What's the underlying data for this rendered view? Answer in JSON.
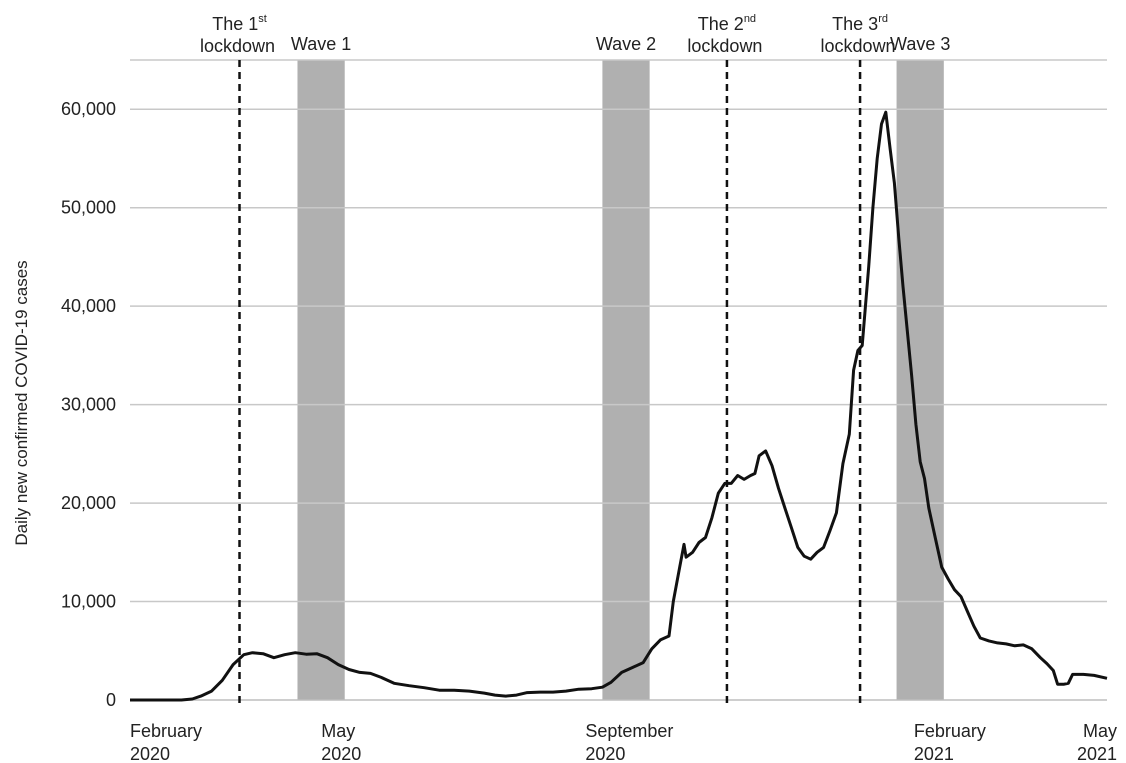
{
  "chart_data": {
    "type": "line",
    "title": "",
    "xlabel": "",
    "ylabel": "Daily new confirmed COVID-19 cases",
    "ylim": [
      0,
      65000
    ],
    "xlim": [
      "2020-02-01",
      "2021-05-01"
    ],
    "grid": "horizontal",
    "y_ticks": [
      {
        "value": 0,
        "label": "0"
      },
      {
        "value": 10000,
        "label": "10,000"
      },
      {
        "value": 20000,
        "label": "20,000"
      },
      {
        "value": 30000,
        "label": "30,000"
      },
      {
        "value": 40000,
        "label": "40,000"
      },
      {
        "value": 50000,
        "label": "50,000"
      },
      {
        "value": 60000,
        "label": "60,000"
      }
    ],
    "x_ticks": [
      {
        "date": "2020-02-01",
        "line1": "February",
        "line2": "2020"
      },
      {
        "date": "2020-05-01",
        "line1": "May",
        "line2": "2020"
      },
      {
        "date": "2020-09-01",
        "line1": "September",
        "line2": "2020"
      },
      {
        "date": "2021-02-01",
        "line1": "February",
        "line2": "2021"
      },
      {
        "date": "2021-05-01",
        "line1": "May",
        "line2": "2021"
      }
    ],
    "lockdowns": [
      {
        "date": "2020-03-23",
        "label": "The 1",
        "sup": "st",
        "line2": "lockdown"
      },
      {
        "date": "2020-11-05",
        "label": "The 2",
        "sup": "nd",
        "line2": "lockdown"
      },
      {
        "date": "2021-01-06",
        "label": "The 3",
        "sup": "rd",
        "line2": "lockdown"
      }
    ],
    "waves": [
      {
        "label": "Wave 1",
        "start": "2020-04-19",
        "end": "2020-05-11"
      },
      {
        "label": "Wave 2",
        "start": "2020-09-08",
        "end": "2020-09-30"
      },
      {
        "label": "Wave 3",
        "start": "2021-01-23",
        "end": "2021-02-14"
      }
    ],
    "series": [
      {
        "color": "#111111",
        "points": [
          [
            "2020-02-01",
            0
          ],
          [
            "2020-02-25",
            0
          ],
          [
            "2020-03-01",
            100
          ],
          [
            "2020-03-05",
            400
          ],
          [
            "2020-03-10",
            900
          ],
          [
            "2020-03-15",
            2000
          ],
          [
            "2020-03-20",
            3600
          ],
          [
            "2020-03-25",
            4600
          ],
          [
            "2020-03-29",
            4800
          ],
          [
            "2020-04-03",
            4700
          ],
          [
            "2020-04-08",
            4300
          ],
          [
            "2020-04-13",
            4600
          ],
          [
            "2020-04-18",
            4800
          ],
          [
            "2020-04-23",
            4650
          ],
          [
            "2020-04-28",
            4700
          ],
          [
            "2020-05-03",
            4300
          ],
          [
            "2020-05-08",
            3600
          ],
          [
            "2020-05-13",
            3100
          ],
          [
            "2020-05-18",
            2800
          ],
          [
            "2020-05-23",
            2700
          ],
          [
            "2020-05-28",
            2300
          ],
          [
            "2020-06-03",
            1700
          ],
          [
            "2020-06-10",
            1450
          ],
          [
            "2020-06-17",
            1250
          ],
          [
            "2020-06-24",
            1000
          ],
          [
            "2020-07-01",
            1000
          ],
          [
            "2020-07-08",
            900
          ],
          [
            "2020-07-15",
            700
          ],
          [
            "2020-07-20",
            500
          ],
          [
            "2020-07-25",
            400
          ],
          [
            "2020-07-30",
            500
          ],
          [
            "2020-08-04",
            750
          ],
          [
            "2020-08-10",
            800
          ],
          [
            "2020-08-16",
            800
          ],
          [
            "2020-08-22",
            900
          ],
          [
            "2020-08-28",
            1100
          ],
          [
            "2020-09-03",
            1150
          ],
          [
            "2020-09-08",
            1300
          ],
          [
            "2020-09-12",
            1800
          ],
          [
            "2020-09-17",
            2800
          ],
          [
            "2020-09-22",
            3300
          ],
          [
            "2020-09-27",
            3800
          ],
          [
            "2020-10-01",
            5200
          ],
          [
            "2020-10-05",
            6100
          ],
          [
            "2020-10-09",
            6500
          ],
          [
            "2020-10-11",
            10000
          ],
          [
            "2020-10-14",
            13500
          ],
          [
            "2020-10-16",
            15800
          ],
          [
            "2020-10-17",
            14500
          ],
          [
            "2020-10-20",
            15000
          ],
          [
            "2020-10-23",
            16000
          ],
          [
            "2020-10-26",
            16500
          ],
          [
            "2020-10-29",
            18500
          ],
          [
            "2020-11-01",
            21000
          ],
          [
            "2020-11-04",
            22000
          ],
          [
            "2020-11-07",
            22000
          ],
          [
            "2020-11-10",
            22800
          ],
          [
            "2020-11-13",
            22400
          ],
          [
            "2020-11-16",
            22800
          ],
          [
            "2020-11-18",
            23000
          ],
          [
            "2020-11-20",
            24800
          ],
          [
            "2020-11-23",
            25300
          ],
          [
            "2020-11-26",
            23800
          ],
          [
            "2020-11-29",
            21500
          ],
          [
            "2020-12-02",
            19500
          ],
          [
            "2020-12-05",
            17500
          ],
          [
            "2020-12-08",
            15500
          ],
          [
            "2020-12-11",
            14600
          ],
          [
            "2020-12-14",
            14300
          ],
          [
            "2020-12-17",
            15000
          ],
          [
            "2020-12-20",
            15500
          ],
          [
            "2020-12-23",
            17200
          ],
          [
            "2020-12-26",
            19000
          ],
          [
            "2020-12-29",
            24000
          ],
          [
            "2021-01-01",
            27000
          ],
          [
            "2021-01-03",
            33500
          ],
          [
            "2021-01-05",
            35500
          ],
          [
            "2021-01-07",
            36000
          ],
          [
            "2021-01-10",
            44000
          ],
          [
            "2021-01-12",
            50000
          ],
          [
            "2021-01-14",
            55000
          ],
          [
            "2021-01-16",
            58500
          ],
          [
            "2021-01-18",
            59700
          ],
          [
            "2021-01-20",
            56000
          ],
          [
            "2021-01-22",
            52500
          ],
          [
            "2021-01-24",
            47000
          ],
          [
            "2021-01-26",
            42000
          ],
          [
            "2021-01-28",
            37500
          ],
          [
            "2021-01-30",
            33000
          ],
          [
            "2021-02-01",
            28000
          ],
          [
            "2021-02-03",
            24200
          ],
          [
            "2021-02-05",
            22500
          ],
          [
            "2021-02-07",
            19500
          ],
          [
            "2021-02-10",
            16500
          ],
          [
            "2021-02-13",
            13500
          ],
          [
            "2021-02-16",
            12300
          ],
          [
            "2021-02-19",
            11200
          ],
          [
            "2021-02-22",
            10500
          ],
          [
            "2021-02-25",
            9000
          ],
          [
            "2021-02-28",
            7500
          ],
          [
            "2021-03-03",
            6300
          ],
          [
            "2021-03-07",
            6000
          ],
          [
            "2021-03-11",
            5800
          ],
          [
            "2021-03-15",
            5700
          ],
          [
            "2021-03-19",
            5500
          ],
          [
            "2021-03-23",
            5600
          ],
          [
            "2021-03-27",
            5200
          ],
          [
            "2021-03-31",
            4300
          ],
          [
            "2021-04-03",
            3700
          ],
          [
            "2021-04-06",
            3000
          ],
          [
            "2021-04-08",
            1600
          ],
          [
            "2021-04-11",
            1600
          ],
          [
            "2021-04-13",
            1700
          ],
          [
            "2021-04-15",
            2600
          ],
          [
            "2021-04-20",
            2600
          ],
          [
            "2021-04-25",
            2500
          ],
          [
            "2021-05-01",
            2200
          ]
        ]
      }
    ]
  }
}
